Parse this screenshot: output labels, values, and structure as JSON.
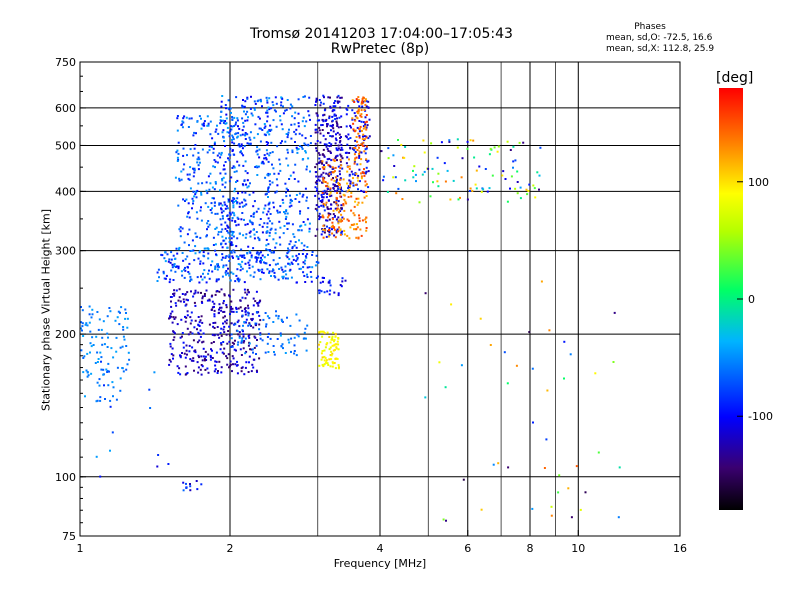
{
  "title_line1": "Tromsø 20141203 17:04:00–17:05:43",
  "title_line2": "RwPretec (8p)",
  "phases": {
    "heading": "Phases",
    "o_line": "mean, sd,O: -72.5, 16.6",
    "x_line": "mean, sd,X: 112.8, 25.9"
  },
  "colorbar": {
    "unit": "[deg]",
    "ticks": [
      {
        "label": "100",
        "value": 100
      },
      {
        "label": "0",
        "value": 0
      },
      {
        "label": "-100",
        "value": -100
      }
    ],
    "range": [
      -180,
      180
    ]
  },
  "chart_data": {
    "type": "scatter",
    "xlabel": "Frequency [MHz]",
    "ylabel": "Stationary phase Virtual Height [km]",
    "x_scale": "log",
    "y_scale": "log",
    "xlim": [
      1,
      16
    ],
    "ylim": [
      75,
      750
    ],
    "x_ticks": [
      {
        "label": "1",
        "value": 1
      },
      {
        "label": "2",
        "value": 2
      },
      {
        "label": "4",
        "value": 4
      },
      {
        "label": "6",
        "value": 6
      },
      {
        "label": "8",
        "value": 8
      },
      {
        "label": "10",
        "value": 10
      },
      {
        "label": "16",
        "value": 16
      }
    ],
    "y_ticks": [
      {
        "label": "75",
        "value": 75
      },
      {
        "label": "100",
        "value": 100
      },
      {
        "label": "200",
        "value": 200
      },
      {
        "label": "300",
        "value": 300
      },
      {
        "label": "400",
        "value": 400
      },
      {
        "label": "500",
        "value": 500
      },
      {
        "label": "600",
        "value": 600
      },
      {
        "label": "750",
        "value": 750
      }
    ],
    "grid": true,
    "clusters": [
      {
        "f": [
          1.42,
          3.0
        ],
        "h": [
          258,
          300
        ],
        "phase": [
          -110,
          -40
        ],
        "density": 260
      },
      {
        "f": [
          1.55,
          2.05
        ],
        "h": [
          300,
          580
        ],
        "phase": [
          -100,
          -40
        ],
        "density": 260
      },
      {
        "f": [
          1.9,
          2.4
        ],
        "h": [
          290,
          640
        ],
        "phase": [
          -110,
          -40
        ],
        "density": 340
      },
      {
        "f": [
          2.35,
          2.9
        ],
        "h": [
          300,
          640
        ],
        "phase": [
          -100,
          -40
        ],
        "density": 220
      },
      {
        "f": [
          2.95,
          3.35
        ],
        "h": [
          320,
          640
        ],
        "phase": [
          -150,
          -80
        ],
        "density": 320
      },
      {
        "f": [
          3.4,
          3.8
        ],
        "h": [
          400,
          630
        ],
        "phase": [
          -130,
          -80
        ],
        "density": 110
      },
      {
        "f": [
          3.05,
          3.75
        ],
        "h": [
          318,
          470
        ],
        "phase": [
          110,
          160
        ],
        "density": 170
      },
      {
        "f": [
          3.5,
          3.75
        ],
        "h": [
          470,
          640
        ],
        "phase": [
          120,
          165
        ],
        "density": 70
      },
      {
        "f": [
          1.5,
          2.3
        ],
        "h": [
          165,
          250
        ],
        "phase": [
          -150,
          -90
        ],
        "density": 380
      },
      {
        "f": [
          2.0,
          2.85
        ],
        "h": [
          180,
          225
        ],
        "phase": [
          -80,
          -40
        ],
        "density": 90
      },
      {
        "f": [
          1.0,
          1.25
        ],
        "h": [
          145,
          230
        ],
        "phase": [
          -70,
          -40
        ],
        "density": 110
      },
      {
        "f": [
          3.0,
          3.3
        ],
        "h": [
          170,
          205
        ],
        "phase": [
          75,
          110
        ],
        "density": 80
      },
      {
        "f": [
          3.0,
          3.4
        ],
        "h": [
          240,
          265
        ],
        "phase": [
          -120,
          -80
        ],
        "density": 25
      },
      {
        "f": [
          4.0,
          8.5
        ],
        "h": [
          380,
          520
        ],
        "phase": [
          -140,
          140
        ],
        "density": 110
      },
      {
        "f": [
          4.8,
          12.5
        ],
        "h": [
          80,
          320
        ],
        "phase": [
          -160,
          160
        ],
        "density": 45
      },
      {
        "f": [
          1.0,
          1.5
        ],
        "h": [
          100,
          180
        ],
        "phase": [
          -120,
          -40
        ],
        "density": 14
      },
      {
        "f": [
          1.6,
          1.75
        ],
        "h": [
          94,
          99
        ],
        "phase": [
          -140,
          -60
        ],
        "density": 12
      }
    ]
  }
}
